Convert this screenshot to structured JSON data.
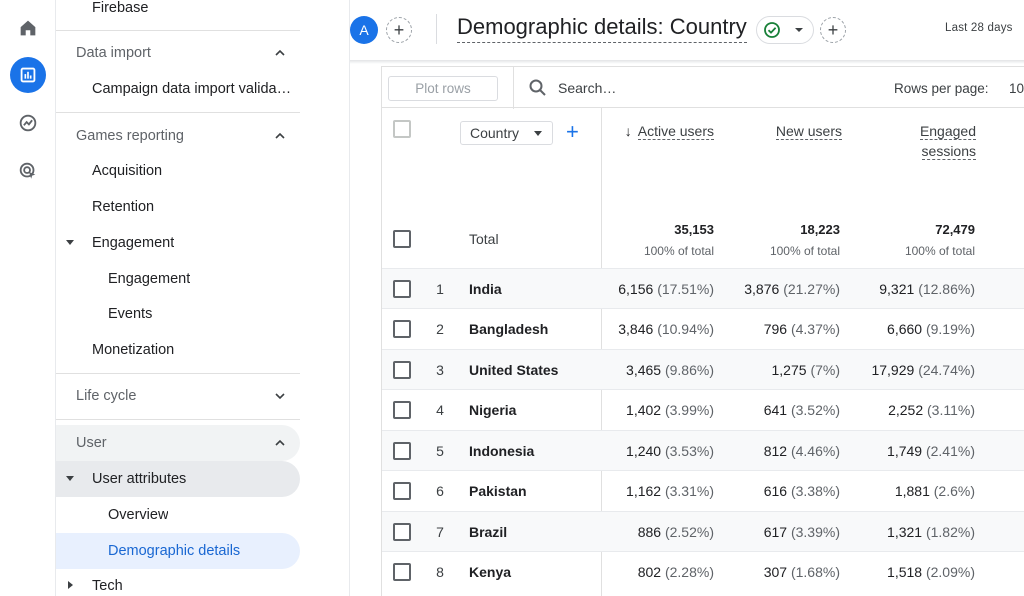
{
  "rail": {
    "items": [
      {
        "name": "home-icon"
      },
      {
        "name": "reports-icon",
        "active": true
      },
      {
        "name": "explore-icon"
      },
      {
        "name": "advertising-icon"
      }
    ]
  },
  "sidebar": {
    "firebase": "Firebase",
    "data_import": "Data import",
    "campaign_import": "Campaign data import valida…",
    "games_reporting": "Games reporting",
    "acquisition": "Acquisition",
    "retention": "Retention",
    "engagement_group": "Engagement",
    "engagement": "Engagement",
    "events": "Events",
    "monetization": "Monetization",
    "life_cycle": "Life cycle",
    "user": "User",
    "user_attributes": "User attributes",
    "overview": "Overview",
    "demographic_details": "Demographic details",
    "tech": "Tech"
  },
  "header": {
    "avatar_letter": "A",
    "add_comparison": "+",
    "title": "Demographic details: Country",
    "add_button": "+",
    "date_range": "Last 28 days"
  },
  "toolbar": {
    "plot_rows": "Plot rows",
    "search_placeholder": "Search…",
    "rows_per_page_label": "Rows per page:",
    "rows_per_page_value": "10"
  },
  "table": {
    "dimension": "Country",
    "add_dimension": "+",
    "columns": [
      {
        "label": "Active users",
        "sorted": true
      },
      {
        "label": "New users"
      },
      {
        "label_line1": "Engaged",
        "label_line2": "sessions"
      }
    ],
    "total_label": "Total",
    "totals": [
      {
        "value": "35,153",
        "pct": "100% of total"
      },
      {
        "value": "18,223",
        "pct": "100% of total"
      },
      {
        "value": "72,479",
        "pct": "100% of total"
      }
    ],
    "rows": [
      {
        "idx": "1",
        "country": "India",
        "c1": "6,156",
        "p1": "(17.51%)",
        "c2": "3,876",
        "p2": "(21.27%)",
        "c3": "9,321",
        "p3": "(12.86%)"
      },
      {
        "idx": "2",
        "country": "Bangladesh",
        "c1": "3,846",
        "p1": "(10.94%)",
        "c2": "796",
        "p2": "(4.37%)",
        "c3": "6,660",
        "p3": "(9.19%)"
      },
      {
        "idx": "3",
        "country": "United States",
        "c1": "3,465",
        "p1": "(9.86%)",
        "c2": "1,275",
        "p2": "(7%)",
        "c3": "17,929",
        "p3": "(24.74%)"
      },
      {
        "idx": "4",
        "country": "Nigeria",
        "c1": "1,402",
        "p1": "(3.99%)",
        "c2": "641",
        "p2": "(3.52%)",
        "c3": "2,252",
        "p3": "(3.11%)"
      },
      {
        "idx": "5",
        "country": "Indonesia",
        "c1": "1,240",
        "p1": "(3.53%)",
        "c2": "812",
        "p2": "(4.46%)",
        "c3": "1,749",
        "p3": "(2.41%)"
      },
      {
        "idx": "6",
        "country": "Pakistan",
        "c1": "1,162",
        "p1": "(3.31%)",
        "c2": "616",
        "p2": "(3.38%)",
        "c3": "1,881",
        "p3": "(2.6%)"
      },
      {
        "idx": "7",
        "country": "Brazil",
        "c1": "886",
        "p1": "(2.52%)",
        "c2": "617",
        "p2": "(3.39%)",
        "c3": "1,321",
        "p3": "(1.82%)"
      },
      {
        "idx": "8",
        "country": "Kenya",
        "c1": "802",
        "p1": "(2.28%)",
        "c2": "307",
        "p2": "(1.68%)",
        "c3": "1,518",
        "p3": "(2.09%)"
      }
    ]
  },
  "colors": {
    "accent": "#1a73e8",
    "nav_selected_bg": "#e8f0fe",
    "nav_selected_text": "#1967d2",
    "check_green": "#188038"
  }
}
